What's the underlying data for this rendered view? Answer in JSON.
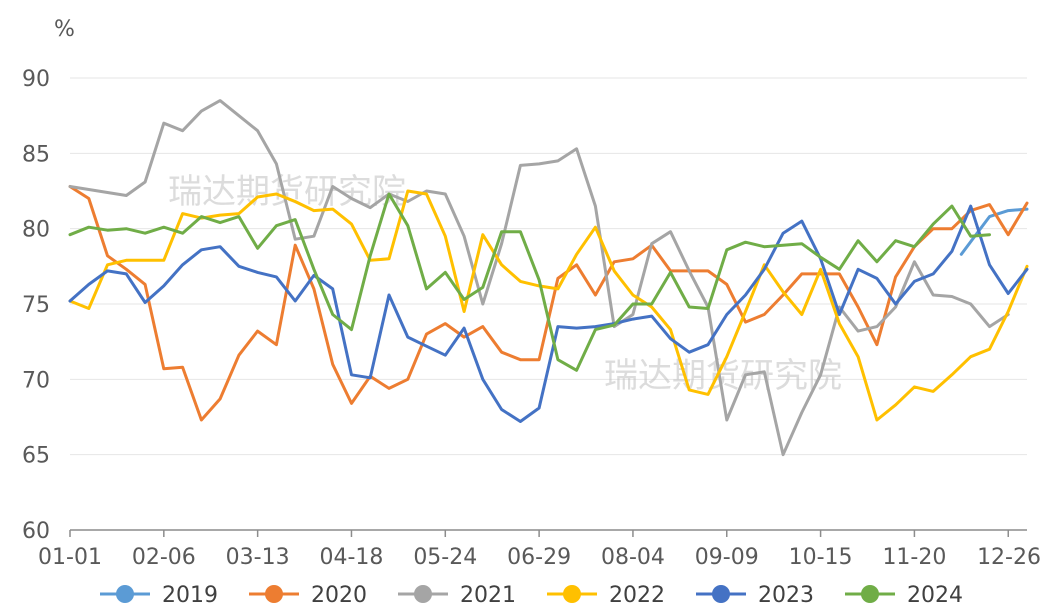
{
  "chart_data": {
    "type": "line",
    "ylabel": "%",
    "ylim": [
      60,
      90
    ],
    "yticks": [
      60,
      65,
      70,
      75,
      80,
      85,
      90
    ],
    "xticks": [
      "01-01",
      "02-06",
      "03-13",
      "04-18",
      "05-24",
      "06-29",
      "08-04",
      "09-09",
      "10-15",
      "11-20",
      "12-26"
    ],
    "grid": "horizontal",
    "legend_position": "bottom",
    "watermark": "瑞达期货研究院",
    "series": [
      {
        "name": "2019",
        "color": "#5B9BD5",
        "points": [
          [
            47.5,
            78.3
          ],
          [
            49,
            80.8
          ],
          [
            50,
            81.2
          ],
          [
            51,
            81.3
          ]
        ]
      },
      {
        "name": "2020",
        "color": "#ED7D31",
        "points": [
          [
            0,
            82.8
          ],
          [
            1,
            82.0
          ],
          [
            2,
            78.2
          ],
          [
            3,
            77.3
          ],
          [
            4,
            76.3
          ],
          [
            5,
            70.7
          ],
          [
            6,
            70.8
          ],
          [
            7,
            67.3
          ],
          [
            8,
            68.7
          ],
          [
            9,
            71.6
          ],
          [
            10,
            73.2
          ],
          [
            11,
            72.3
          ],
          [
            12,
            78.9
          ],
          [
            13,
            76.0
          ],
          [
            14,
            71.0
          ],
          [
            15,
            68.4
          ],
          [
            16,
            70.2
          ],
          [
            17,
            69.4
          ],
          [
            18,
            70.0
          ],
          [
            19,
            73.0
          ],
          [
            20,
            73.7
          ],
          [
            21,
            72.8
          ],
          [
            22,
            73.5
          ],
          [
            23,
            71.8
          ],
          [
            24,
            71.3
          ],
          [
            25,
            71.3
          ],
          [
            26,
            76.7
          ],
          [
            27,
            77.6
          ],
          [
            28,
            75.6
          ],
          [
            29,
            77.8
          ],
          [
            30,
            78.0
          ],
          [
            31,
            78.9
          ],
          [
            32,
            77.2
          ],
          [
            33,
            77.2
          ],
          [
            34,
            77.2
          ],
          [
            35,
            76.3
          ],
          [
            36,
            73.8
          ],
          [
            37,
            74.3
          ],
          [
            38,
            75.6
          ],
          [
            39,
            77.0
          ],
          [
            40,
            77.0
          ],
          [
            41,
            77.0
          ],
          [
            42,
            74.8
          ],
          [
            43,
            72.3
          ],
          [
            44,
            76.8
          ],
          [
            45,
            78.8
          ],
          [
            46,
            80.0
          ],
          [
            47,
            80.0
          ],
          [
            48,
            81.2
          ],
          [
            49,
            81.6
          ],
          [
            50,
            79.6
          ],
          [
            51,
            81.7
          ]
        ]
      },
      {
        "name": "2021",
        "color": "#A5A5A5",
        "points": [
          [
            0,
            82.8
          ],
          [
            1,
            82.6
          ],
          [
            2,
            82.4
          ],
          [
            3,
            82.2
          ],
          [
            4,
            83.1
          ],
          [
            5,
            87.0
          ],
          [
            6,
            86.5
          ],
          [
            7,
            87.8
          ],
          [
            8,
            88.5
          ],
          [
            9,
            87.5
          ],
          [
            10,
            86.5
          ],
          [
            11,
            84.3
          ],
          [
            12,
            79.3
          ],
          [
            13,
            79.5
          ],
          [
            14,
            82.8
          ],
          [
            15,
            82.0
          ],
          [
            16,
            81.4
          ],
          [
            17,
            82.3
          ],
          [
            18,
            81.8
          ],
          [
            19,
            82.5
          ],
          [
            20,
            82.3
          ],
          [
            21,
            79.5
          ],
          [
            22,
            75.0
          ],
          [
            23,
            79.0
          ],
          [
            24,
            84.2
          ],
          [
            25,
            84.3
          ],
          [
            26,
            84.5
          ],
          [
            27,
            85.3
          ],
          [
            28,
            81.5
          ],
          [
            29,
            73.5
          ],
          [
            30,
            74.3
          ],
          [
            31,
            79.0
          ],
          [
            32,
            79.8
          ],
          [
            33,
            77.2
          ],
          [
            34,
            74.8
          ],
          [
            35,
            67.3
          ],
          [
            36,
            70.3
          ],
          [
            37,
            70.5
          ],
          [
            38,
            65.0
          ],
          [
            39,
            67.8
          ],
          [
            40,
            70.3
          ],
          [
            41,
            74.8
          ],
          [
            42,
            73.2
          ],
          [
            43,
            73.5
          ],
          [
            44,
            74.8
          ],
          [
            45,
            77.8
          ],
          [
            46,
            75.6
          ],
          [
            47,
            75.5
          ],
          [
            48,
            75.0
          ],
          [
            49,
            73.5
          ],
          [
            50,
            74.3
          ]
        ]
      },
      {
        "name": "2022",
        "color": "#FFC000",
        "points": [
          [
            0,
            75.2
          ],
          [
            1,
            74.7
          ],
          [
            2,
            77.6
          ],
          [
            3,
            77.9
          ],
          [
            4,
            77.9
          ],
          [
            5,
            77.9
          ],
          [
            6,
            81.0
          ],
          [
            7,
            80.7
          ],
          [
            8,
            80.9
          ],
          [
            9,
            81.0
          ],
          [
            10,
            82.1
          ],
          [
            11,
            82.3
          ],
          [
            12,
            81.8
          ],
          [
            13,
            81.2
          ],
          [
            14,
            81.3
          ],
          [
            15,
            80.3
          ],
          [
            16,
            77.9
          ],
          [
            17,
            78.0
          ],
          [
            18,
            82.5
          ],
          [
            19,
            82.3
          ],
          [
            20,
            79.5
          ],
          [
            21,
            74.5
          ],
          [
            22,
            79.6
          ],
          [
            23,
            77.6
          ],
          [
            24,
            76.5
          ],
          [
            25,
            76.2
          ],
          [
            26,
            76.0
          ],
          [
            27,
            78.3
          ],
          [
            28,
            80.1
          ],
          [
            29,
            77.2
          ],
          [
            30,
            75.6
          ],
          [
            31,
            74.8
          ],
          [
            32,
            73.3
          ],
          [
            33,
            69.3
          ],
          [
            34,
            69.0
          ],
          [
            35,
            71.5
          ],
          [
            36,
            74.5
          ],
          [
            37,
            77.6
          ],
          [
            38,
            75.8
          ],
          [
            39,
            74.3
          ],
          [
            40,
            77.3
          ],
          [
            41,
            73.7
          ],
          [
            42,
            71.5
          ],
          [
            43,
            67.3
          ],
          [
            44,
            68.3
          ],
          [
            45,
            69.5
          ],
          [
            46,
            69.2
          ],
          [
            47,
            70.3
          ],
          [
            48,
            71.5
          ],
          [
            49,
            72.0
          ],
          [
            50,
            74.5
          ],
          [
            51,
            77.5
          ]
        ]
      },
      {
        "name": "2023",
        "color": "#4472C4",
        "points": [
          [
            0,
            75.2
          ],
          [
            1,
            76.3
          ],
          [
            2,
            77.2
          ],
          [
            3,
            77.0
          ],
          [
            4,
            75.1
          ],
          [
            5,
            76.2
          ],
          [
            6,
            77.6
          ],
          [
            7,
            78.6
          ],
          [
            8,
            78.8
          ],
          [
            9,
            77.5
          ],
          [
            10,
            77.1
          ],
          [
            11,
            76.8
          ],
          [
            12,
            75.2
          ],
          [
            13,
            76.9
          ],
          [
            14,
            76.0
          ],
          [
            15,
            70.3
          ],
          [
            16,
            70.1
          ],
          [
            17,
            75.6
          ],
          [
            18,
            72.8
          ],
          [
            19,
            72.2
          ],
          [
            20,
            71.6
          ],
          [
            21,
            73.4
          ],
          [
            22,
            70.0
          ],
          [
            23,
            68.0
          ],
          [
            24,
            67.2
          ],
          [
            25,
            68.1
          ],
          [
            26,
            73.5
          ],
          [
            27,
            73.4
          ],
          [
            28,
            73.5
          ],
          [
            29,
            73.7
          ],
          [
            30,
            74.0
          ],
          [
            31,
            74.2
          ],
          [
            32,
            72.7
          ],
          [
            33,
            71.8
          ],
          [
            34,
            72.3
          ],
          [
            35,
            74.3
          ],
          [
            36,
            75.6
          ],
          [
            37,
            77.3
          ],
          [
            38,
            79.7
          ],
          [
            39,
            80.5
          ],
          [
            40,
            78.0
          ],
          [
            41,
            74.3
          ],
          [
            42,
            77.3
          ],
          [
            43,
            76.7
          ],
          [
            44,
            75.0
          ],
          [
            45,
            76.5
          ],
          [
            46,
            77.0
          ],
          [
            47,
            78.5
          ],
          [
            48,
            81.5
          ],
          [
            49,
            77.6
          ],
          [
            50,
            75.7
          ],
          [
            51,
            77.3
          ]
        ]
      },
      {
        "name": "2024",
        "color": "#70AD47",
        "points": [
          [
            0,
            79.6
          ],
          [
            1,
            80.1
          ],
          [
            2,
            79.9
          ],
          [
            3,
            80.0
          ],
          [
            4,
            79.7
          ],
          [
            5,
            80.1
          ],
          [
            6,
            79.7
          ],
          [
            7,
            80.8
          ],
          [
            8,
            80.4
          ],
          [
            9,
            80.8
          ],
          [
            10,
            78.7
          ],
          [
            11,
            80.2
          ],
          [
            12,
            80.6
          ],
          [
            13,
            77.3
          ],
          [
            14,
            74.3
          ],
          [
            15,
            73.3
          ],
          [
            16,
            78.2
          ],
          [
            17,
            82.3
          ],
          [
            18,
            80.2
          ],
          [
            19,
            76.0
          ],
          [
            20,
            77.1
          ],
          [
            21,
            75.3
          ],
          [
            22,
            76.1
          ],
          [
            23,
            79.8
          ],
          [
            24,
            79.8
          ],
          [
            25,
            76.6
          ],
          [
            26,
            71.3
          ],
          [
            27,
            70.6
          ],
          [
            28,
            73.3
          ],
          [
            29,
            73.6
          ],
          [
            30,
            75.0
          ],
          [
            31,
            75.0
          ],
          [
            32,
            77.1
          ],
          [
            33,
            74.8
          ],
          [
            34,
            74.7
          ],
          [
            35,
            78.6
          ],
          [
            36,
            79.1
          ],
          [
            37,
            78.8
          ],
          [
            38,
            78.9
          ],
          [
            39,
            79.0
          ],
          [
            40,
            78.1
          ],
          [
            41,
            77.3
          ],
          [
            42,
            79.2
          ],
          [
            43,
            77.8
          ],
          [
            44,
            79.2
          ],
          [
            45,
            78.8
          ],
          [
            46,
            80.3
          ],
          [
            47,
            81.5
          ],
          [
            48,
            79.5
          ],
          [
            49,
            79.6
          ]
        ]
      }
    ]
  }
}
